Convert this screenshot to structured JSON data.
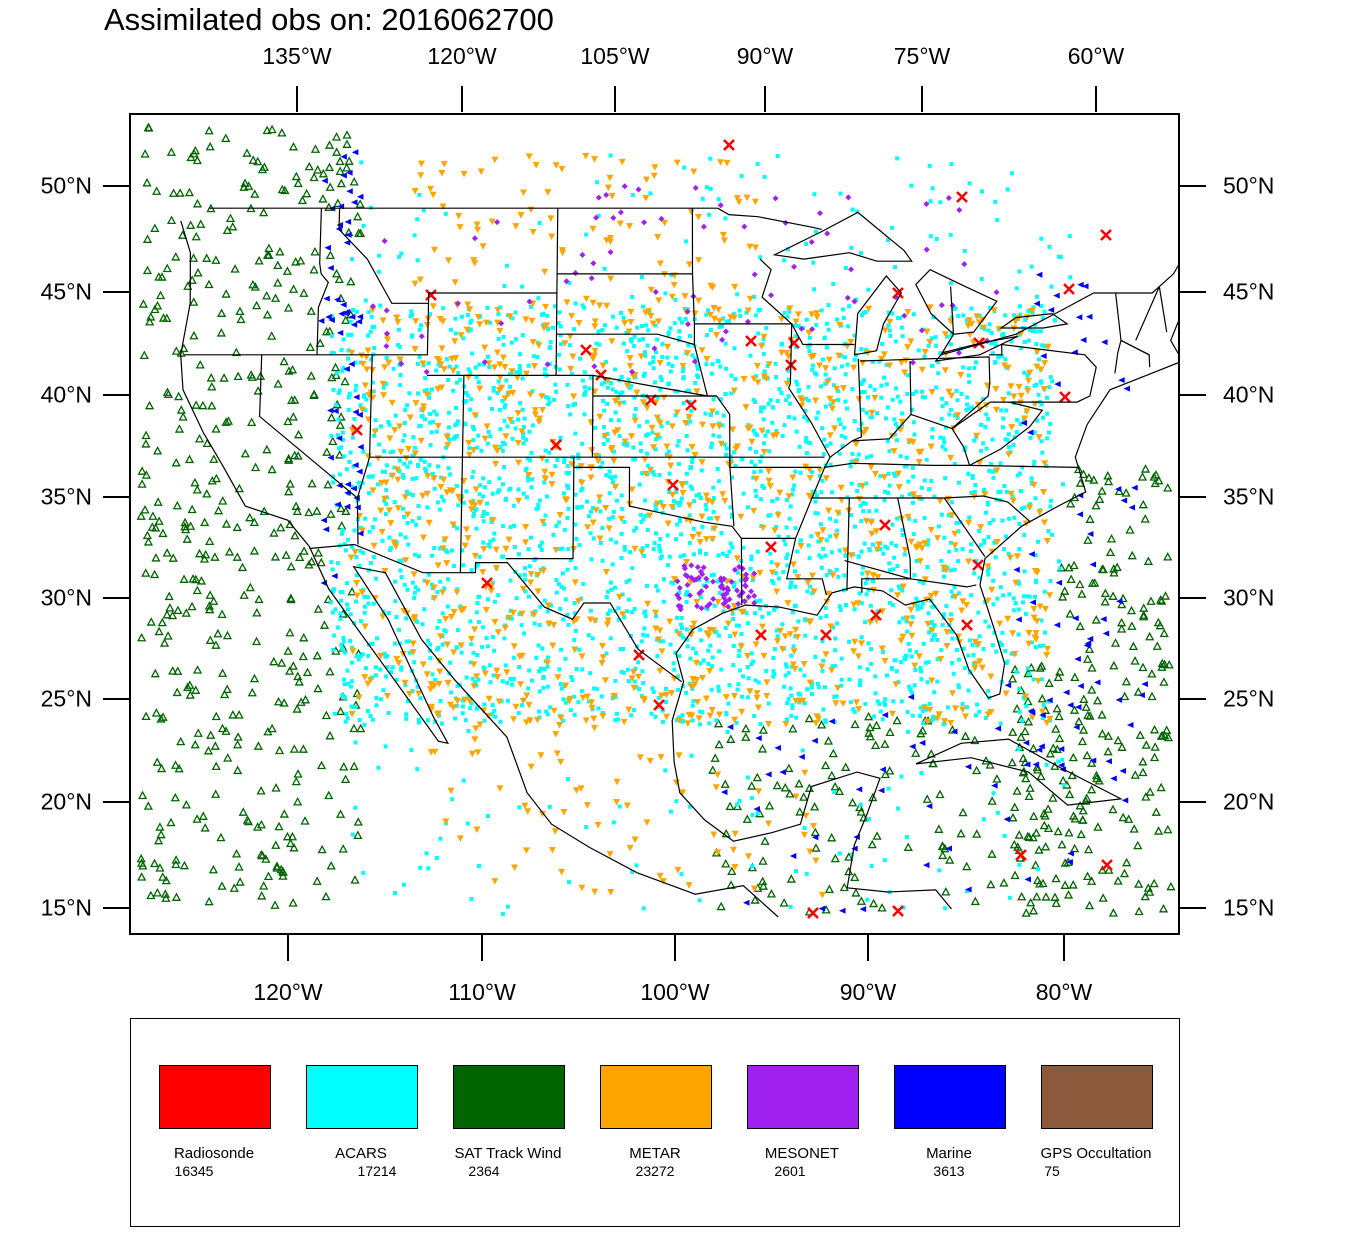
{
  "title": "Assimilated obs on: 2016062700",
  "map": {
    "top_lon_ticks": [
      "135°W",
      "120°W",
      "105°W",
      "90°W",
      "75°W",
      "60°W"
    ],
    "bottom_lon_ticks": [
      "120°W",
      "110°W",
      "100°W",
      "90°W",
      "80°W"
    ],
    "lat_ticks": [
      "50°N",
      "45°N",
      "40°N",
      "35°N",
      "30°N",
      "25°N",
      "20°N",
      "15°N"
    ],
    "lat_values": [
      50,
      45,
      40,
      35,
      30,
      25,
      20,
      15
    ],
    "extent": {
      "lon": [
        -128,
        -74
      ],
      "lat": [
        13.7,
        53.8
      ]
    },
    "projection": "lambert-conformal",
    "basemap": [
      "coastlines",
      "us-state-boundaries",
      "country-boundaries"
    ]
  },
  "legend": [
    {
      "label": "Radiosonde",
      "count": "16345",
      "color": "#ff0000",
      "marker": "x"
    },
    {
      "label": "ACARS",
      "count": "17214",
      "color": "#00ffff",
      "marker": "dot"
    },
    {
      "label": "SAT Track Wind",
      "count": "2364",
      "color": "#006400",
      "marker": "triangle-up"
    },
    {
      "label": "METAR",
      "count": "23272",
      "color": "#ffa500",
      "marker": "triangle-down"
    },
    {
      "label": "MESONET",
      "count": "2601",
      "color": "#a020f0",
      "marker": "diamond"
    },
    {
      "label": "Marine",
      "count": "3613",
      "color": "#0000ff",
      "marker": "triangle-left"
    },
    {
      "label": "GPS Occultation",
      "count": "75",
      "color": "#8b5a3c",
      "marker": "square"
    }
  ]
}
